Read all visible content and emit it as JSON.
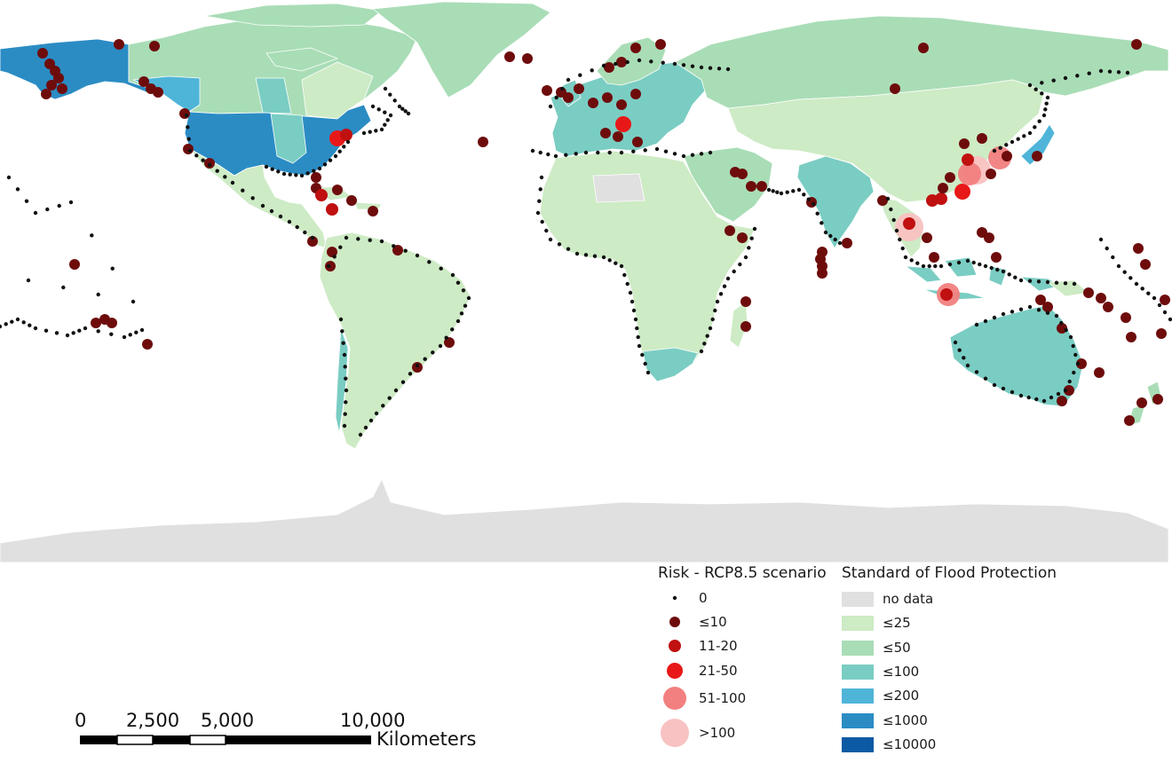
{
  "colors": {
    "ocean": "#ffffff",
    "land_stroke": "#ffffff",
    "dot_zero": "#111111"
  },
  "risk_legend": {
    "title": "Risk - RCP8.5 scenario",
    "classes": [
      {
        "label": "0",
        "color": "#111111"
      },
      {
        "label": "≤10",
        "color": "#6e0c0c"
      },
      {
        "label": "11-20",
        "color": "#c01010"
      },
      {
        "label": "21-50",
        "color": "#e81818"
      },
      {
        "label": "51-100",
        "color": "#f28080"
      },
      {
        "label": ">100",
        "color": "#f9c2c2"
      }
    ]
  },
  "protection_legend": {
    "title": "Standard of Flood Protection",
    "classes": [
      {
        "label": "no data",
        "color": "#e0e0e0"
      },
      {
        "label": "≤25",
        "color": "#cdebc5"
      },
      {
        "label": "≤50",
        "color": "#a9ddb6"
      },
      {
        "label": "≤100",
        "color": "#7acdc3"
      },
      {
        "label": "≤200",
        "color": "#4fb5d8"
      },
      {
        "label": "≤1000",
        "color": "#2b8cc4"
      },
      {
        "label": "≤10000",
        "color": "#0b5aa3"
      }
    ]
  },
  "scale_bar": {
    "ticks": [
      "0",
      "2,500",
      "5,000",
      "10,000"
    ],
    "unit": "Kilometers"
  },
  "regions": [
    {
      "name": "Canada",
      "class": "≤50"
    },
    {
      "name": "Alaska",
      "class": "≤1000"
    },
    {
      "name": "United States",
      "class": "≤1000"
    },
    {
      "name": "Greenland",
      "class": "≤50"
    },
    {
      "name": "Mexico and Central America",
      "class": "≤25"
    },
    {
      "name": "South America",
      "class": "≤25"
    },
    {
      "name": "Europe",
      "class": "≤100"
    },
    {
      "name": "Russia",
      "class": "≤50"
    },
    {
      "name": "Africa",
      "class": "≤25"
    },
    {
      "name": "South Africa",
      "class": "≤100"
    },
    {
      "name": "Middle East",
      "class": "≤50"
    },
    {
      "name": "India",
      "class": "≤100"
    },
    {
      "name": "China",
      "class": "≤25"
    },
    {
      "name": "Australia",
      "class": "≤100"
    },
    {
      "name": "Japan",
      "class": "≤200"
    },
    {
      "name": "Antarctica",
      "class": "no data"
    }
  ]
}
